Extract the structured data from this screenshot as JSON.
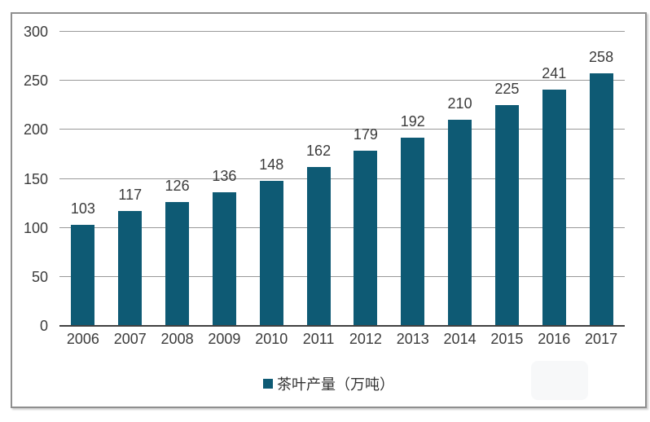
{
  "chart": {
    "legend_label": "茶叶产量（万吨）",
    "colors": {
      "bar": "#0e5a74",
      "gridline": "#999999",
      "axis_line": "#404040",
      "text": "#3b3b3b",
      "frame_border": "#8f8f8f"
    }
  },
  "chart_data": {
    "type": "bar",
    "categories": [
      "2006",
      "2007",
      "2008",
      "2009",
      "2010",
      "2011",
      "2012",
      "2013",
      "2014",
      "2015",
      "2016",
      "2017"
    ],
    "values": [
      103,
      117,
      126,
      136,
      148,
      162,
      179,
      192,
      210,
      225,
      241,
      258
    ],
    "series": [
      {
        "name": "茶叶产量（万吨）",
        "values": [
          103,
          117,
          126,
          136,
          148,
          162,
          179,
          192,
          210,
          225,
          241,
          258
        ]
      }
    ],
    "title": "",
    "xlabel": "",
    "ylabel": "",
    "ylim": [
      0,
      300
    ],
    "yticks": [
      0,
      50,
      100,
      150,
      200,
      250,
      300
    ],
    "grid": true,
    "data_labels": true,
    "legend_position": "bottom"
  }
}
